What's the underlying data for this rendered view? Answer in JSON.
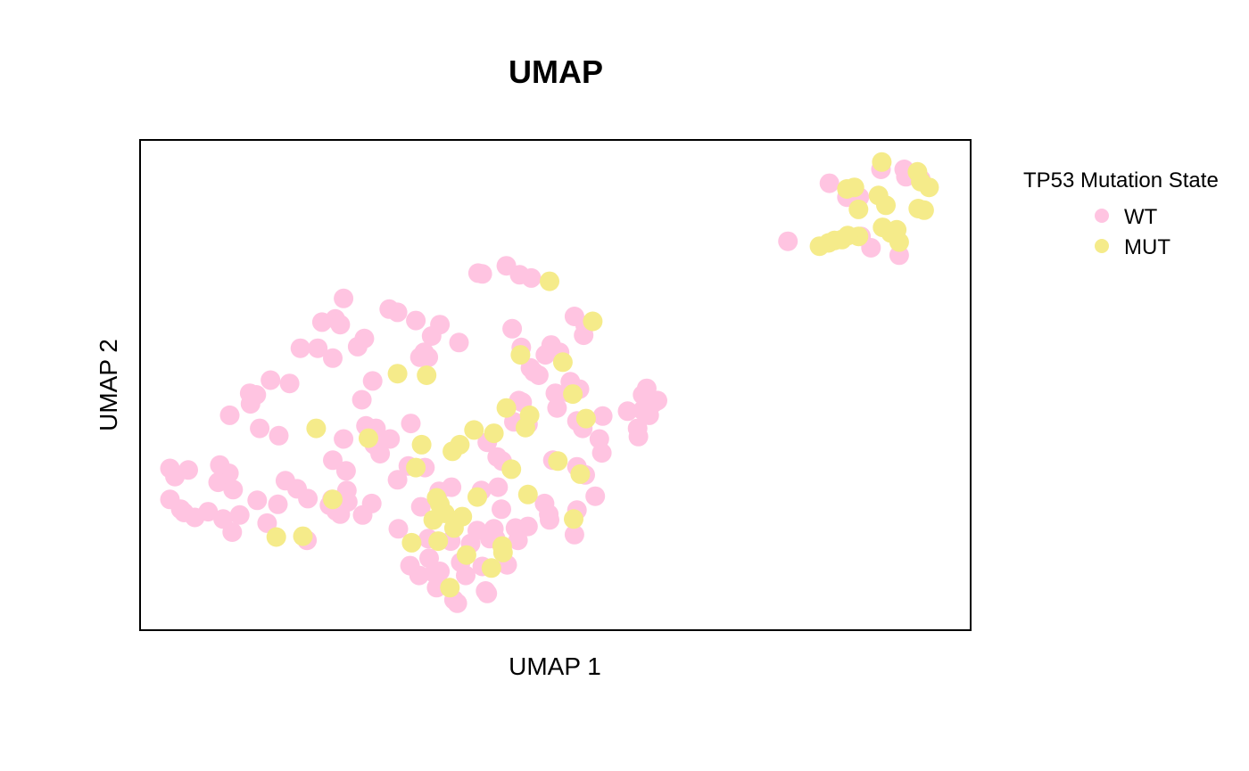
{
  "chart_data": {
    "type": "scatter",
    "title": "UMAP",
    "xlabel": "UMAP 1",
    "ylabel": "UMAP 2",
    "xlim": [
      0,
      10
    ],
    "ylim": [
      0,
      6
    ],
    "grid": false,
    "axis_ticks": false,
    "legend": {
      "title": "TP53 Mutation State",
      "placement": "right",
      "entries": [
        "WT",
        "MUT"
      ]
    },
    "series": [
      {
        "name": "WT",
        "color": "#FFC4E1",
        "points": [
          [
            8.3,
            5.47
          ],
          [
            8.51,
            5.3
          ],
          [
            8.66,
            5.3
          ],
          [
            8.92,
            5.64
          ],
          [
            9.2,
            5.64
          ],
          [
            9.22,
            5.55
          ],
          [
            9.4,
            5.52
          ],
          [
            8.8,
            4.68
          ],
          [
            9.14,
            4.59
          ],
          [
            8.68,
            4.82
          ],
          [
            7.8,
            4.76
          ],
          [
            4.07,
            4.37
          ],
          [
            4.12,
            4.36
          ],
          [
            4.41,
            4.46
          ],
          [
            4.57,
            4.35
          ],
          [
            4.71,
            4.31
          ],
          [
            2.45,
            4.06
          ],
          [
            3.0,
            3.93
          ],
          [
            2.35,
            3.81
          ],
          [
            2.19,
            3.77
          ],
          [
            1.93,
            3.45
          ],
          [
            2.14,
            3.45
          ],
          [
            2.41,
            3.74
          ],
          [
            2.32,
            3.33
          ],
          [
            3.1,
            3.89
          ],
          [
            3.32,
            3.79
          ],
          [
            3.61,
            3.74
          ],
          [
            3.51,
            3.6
          ],
          [
            2.7,
            3.57
          ],
          [
            2.62,
            3.47
          ],
          [
            3.42,
            3.4
          ],
          [
            3.47,
            3.34
          ],
          [
            4.48,
            3.69
          ],
          [
            4.59,
            3.46
          ],
          [
            5.23,
            3.84
          ],
          [
            5.36,
            3.73
          ],
          [
            5.34,
            3.61
          ],
          [
            4.95,
            3.49
          ],
          [
            5.05,
            3.4
          ],
          [
            4.88,
            3.37
          ],
          [
            3.84,
            3.52
          ],
          [
            3.37,
            3.34
          ],
          [
            4.7,
            3.21
          ],
          [
            1.57,
            3.06
          ],
          [
            1.8,
            3.02
          ],
          [
            1.33,
            2.77
          ],
          [
            1.08,
            2.63
          ],
          [
            1.44,
            2.47
          ],
          [
            1.67,
            2.38
          ],
          [
            2.84,
            2.47
          ],
          [
            2.72,
            2.5
          ],
          [
            2.45,
            2.34
          ],
          [
            2.89,
            2.16
          ],
          [
            3.26,
            2.53
          ],
          [
            3.01,
            2.34
          ],
          [
            5.18,
            3.04
          ],
          [
            5.29,
            2.95
          ],
          [
            5.0,
            2.9
          ],
          [
            5.16,
            2.91
          ],
          [
            4.74,
            3.16
          ],
          [
            4.8,
            3.12
          ],
          [
            6.1,
            2.96
          ],
          [
            6.05,
            2.88
          ],
          [
            6.23,
            2.81
          ],
          [
            6.18,
            2.78
          ],
          [
            6.05,
            2.69
          ],
          [
            6.13,
            2.63
          ],
          [
            5.87,
            2.68
          ],
          [
            4.6,
            2.79
          ],
          [
            4.67,
            2.52
          ],
          [
            5.26,
            2.56
          ],
          [
            5.53,
            2.34
          ],
          [
            5.57,
            2.62
          ],
          [
            6.0,
            2.37
          ],
          [
            5.99,
            2.47
          ],
          [
            5.56,
            2.17
          ],
          [
            5.26,
            2.0
          ],
          [
            5.36,
            1.9
          ],
          [
            5.48,
            1.64
          ],
          [
            5.26,
            1.47
          ],
          [
            5.23,
            1.17
          ],
          [
            0.36,
            1.98
          ],
          [
            0.42,
            1.88
          ],
          [
            0.58,
            1.96
          ],
          [
            0.96,
            2.02
          ],
          [
            1.07,
            1.92
          ],
          [
            0.94,
            1.81
          ],
          [
            1.12,
            1.72
          ],
          [
            1.66,
            1.54
          ],
          [
            0.36,
            1.6
          ],
          [
            0.49,
            1.48
          ],
          [
            0.53,
            1.44
          ],
          [
            0.66,
            1.38
          ],
          [
            0.82,
            1.45
          ],
          [
            1.0,
            1.36
          ],
          [
            1.11,
            1.2
          ],
          [
            1.53,
            1.31
          ],
          [
            2.02,
            1.61
          ],
          [
            2.31,
            1.6
          ],
          [
            2.28,
            1.53
          ],
          [
            2.41,
            1.42
          ],
          [
            1.75,
            1.83
          ],
          [
            1.89,
            1.73
          ],
          [
            2.5,
            1.57
          ],
          [
            2.32,
            2.08
          ],
          [
            2.48,
            1.95
          ],
          [
            2.82,
            2.27
          ],
          [
            3.23,
            2.01
          ],
          [
            3.1,
            1.84
          ],
          [
            3.43,
            1.99
          ],
          [
            3.6,
            1.7
          ],
          [
            3.75,
            1.75
          ],
          [
            4.11,
            1.71
          ],
          [
            3.38,
            1.51
          ],
          [
            4.06,
            1.22
          ],
          [
            4.21,
            1.12
          ],
          [
            4.28,
            1.12
          ],
          [
            4.35,
            1.48
          ],
          [
            4.52,
            1.25
          ],
          [
            4.87,
            1.55
          ],
          [
            4.92,
            1.42
          ],
          [
            4.93,
            1.35
          ],
          [
            4.67,
            1.27
          ],
          [
            4.55,
            1.1
          ],
          [
            3.98,
            1.06
          ],
          [
            3.74,
            1.09
          ],
          [
            2.36,
            1.46
          ],
          [
            2.79,
            1.55
          ],
          [
            3.11,
            1.24
          ],
          [
            4.5,
            2.55
          ],
          [
            4.31,
            1.75
          ],
          [
            3.47,
            1.12
          ],
          [
            3.48,
            0.88
          ],
          [
            3.61,
            0.72
          ],
          [
            3.54,
            0.7
          ],
          [
            3.57,
            0.52
          ],
          [
            3.36,
            0.67
          ],
          [
            3.25,
            0.79
          ],
          [
            3.86,
            0.83
          ],
          [
            4.12,
            0.78
          ],
          [
            3.92,
            0.67
          ],
          [
            4.26,
            1.24
          ],
          [
            4.42,
            0.8
          ],
          [
            4.18,
            0.45
          ],
          [
            4.16,
            0.48
          ],
          [
            3.78,
            0.37
          ],
          [
            3.82,
            0.33
          ],
          [
            2.01,
            1.1
          ],
          [
            1.41,
            1.59
          ],
          [
            1.2,
            1.41
          ],
          [
            2.68,
            1.41
          ],
          [
            2.49,
            1.71
          ],
          [
            4.56,
            2.81
          ],
          [
            4.18,
            2.3
          ],
          [
            2.67,
            2.82
          ],
          [
            1.4,
            2.88
          ],
          [
            1.32,
            2.9
          ],
          [
            2.8,
            3.05
          ],
          [
            4.3,
            2.12
          ],
          [
            4.36,
            2.07
          ],
          [
            4.97,
            2.08
          ],
          [
            5.33,
            2.47
          ],
          [
            5.02,
            2.72
          ]
        ]
      },
      {
        "name": "MUT",
        "color": "#F5EB8A",
        "points": [
          [
            8.93,
            5.73
          ],
          [
            9.36,
            5.61
          ],
          [
            9.4,
            5.49
          ],
          [
            9.5,
            5.42
          ],
          [
            8.51,
            5.4
          ],
          [
            8.6,
            5.42
          ],
          [
            8.89,
            5.32
          ],
          [
            8.98,
            5.2
          ],
          [
            8.65,
            5.15
          ],
          [
            9.37,
            5.16
          ],
          [
            9.44,
            5.14
          ],
          [
            8.94,
            4.93
          ],
          [
            9.11,
            4.9
          ],
          [
            9.04,
            4.86
          ],
          [
            9.14,
            4.75
          ],
          [
            8.65,
            4.82
          ],
          [
            8.52,
            4.83
          ],
          [
            8.36,
            4.77
          ],
          [
            8.45,
            4.78
          ],
          [
            8.29,
            4.74
          ],
          [
            8.18,
            4.7
          ],
          [
            4.93,
            4.27
          ],
          [
            5.45,
            3.78
          ],
          [
            3.1,
            3.14
          ],
          [
            3.45,
            3.12
          ],
          [
            2.12,
            2.47
          ],
          [
            3.39,
            2.27
          ],
          [
            2.75,
            2.35
          ],
          [
            4.69,
            2.63
          ],
          [
            3.76,
            2.19
          ],
          [
            3.85,
            2.27
          ],
          [
            3.32,
            1.99
          ],
          [
            3.61,
            1.54
          ],
          [
            4.47,
            1.97
          ],
          [
            5.21,
            2.89
          ],
          [
            5.37,
            2.59
          ],
          [
            4.26,
            2.41
          ],
          [
            4.64,
            2.48
          ],
          [
            5.03,
            2.07
          ],
          [
            5.3,
            1.91
          ],
          [
            3.78,
            1.25
          ],
          [
            3.53,
            1.35
          ],
          [
            3.57,
            1.62
          ],
          [
            3.67,
            1.43
          ],
          [
            4.23,
            0.76
          ],
          [
            3.59,
            1.09
          ],
          [
            3.27,
            1.07
          ],
          [
            4.36,
            1.03
          ],
          [
            4.37,
            0.95
          ],
          [
            1.64,
            1.14
          ],
          [
            1.96,
            1.15
          ],
          [
            2.32,
            1.6
          ],
          [
            3.93,
            0.92
          ],
          [
            5.09,
            3.28
          ],
          [
            4.58,
            3.37
          ],
          [
            3.88,
            1.39
          ],
          [
            4.06,
            1.63
          ],
          [
            3.73,
            0.52
          ],
          [
            4.02,
            2.45
          ],
          [
            5.22,
            1.36
          ],
          [
            4.67,
            1.66
          ],
          [
            4.41,
            2.72
          ]
        ]
      }
    ]
  }
}
